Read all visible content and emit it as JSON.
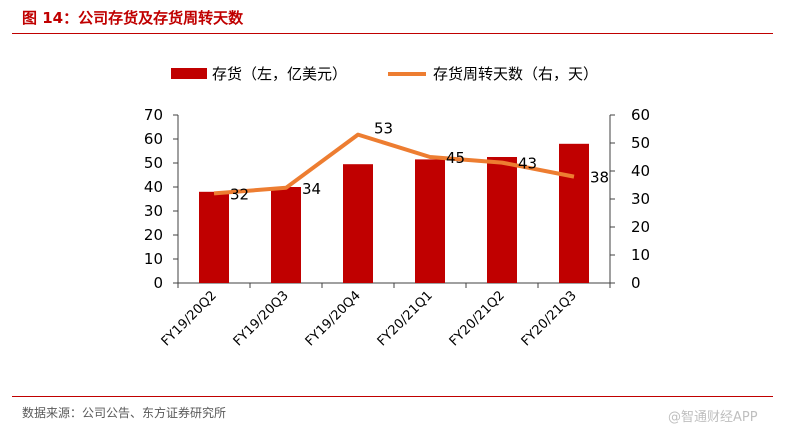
{
  "header": {
    "title": "图 14：公司存货及存货周转天数"
  },
  "footer": {
    "source": "数据来源：公司公告、东方证券研究所",
    "watermark": "@智通财经APP"
  },
  "colors": {
    "bar": "#c00000",
    "line": "#ed7d31",
    "accent": "#c00000"
  },
  "chart_data": {
    "type": "bar+line",
    "categories": [
      "FY19/20Q2",
      "FY19/20Q3",
      "FY19/20Q4",
      "FY20/21Q1",
      "FY20/21Q2",
      "FY20/21Q3"
    ],
    "series": [
      {
        "name": "存货（左，亿美元）",
        "type": "bar",
        "axis": "left",
        "values": [
          38,
          40,
          49.5,
          51.5,
          52.5,
          58
        ]
      },
      {
        "name": "存货周转天数（右，天）",
        "type": "line",
        "axis": "right",
        "values": [
          32,
          34,
          53,
          45,
          43,
          38
        ],
        "labels": [
          "32",
          "34",
          "53",
          "45",
          "43",
          "38"
        ]
      }
    ],
    "y_left": {
      "min": 0,
      "max": 70,
      "ticks": [
        "0",
        "10",
        "20",
        "30",
        "40",
        "50",
        "60",
        "70"
      ]
    },
    "y_right": {
      "min": 0,
      "max": 60,
      "ticks": [
        "0",
        "10",
        "20",
        "30",
        "40",
        "50",
        "60"
      ]
    },
    "legend_position": "top"
  }
}
